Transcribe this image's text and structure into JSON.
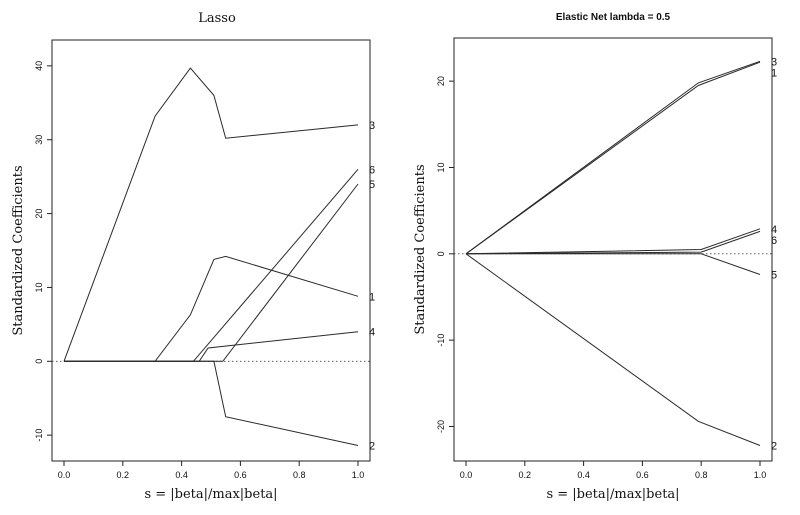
{
  "chart_data": [
    {
      "type": "line",
      "title": "Lasso",
      "xlabel": "s = |beta|/max|beta|",
      "ylabel": "Standardized Coefficients",
      "xlim": [
        0.0,
        1.0
      ],
      "ylim": [
        -13.5,
        43.5
      ],
      "xticks": [
        "0.0",
        "0.2",
        "0.4",
        "0.6",
        "0.8",
        "1.0"
      ],
      "yticks": [
        "-10",
        "0",
        "10",
        "20",
        "30",
        "40"
      ],
      "series": [
        {
          "name": "3",
          "x": [
            0.0,
            0.31,
            0.43,
            0.51,
            0.55,
            1.0
          ],
          "y": [
            0.0,
            33.2,
            39.7,
            36.0,
            30.2,
            32.0
          ]
        },
        {
          "name": "6",
          "x": [
            0.0,
            0.44,
            1.0
          ],
          "y": [
            0.0,
            0.0,
            26.0
          ]
        },
        {
          "name": "5",
          "x": [
            0.0,
            0.54,
            1.0
          ],
          "y": [
            0.0,
            0.0,
            24.0
          ]
        },
        {
          "name": "1",
          "x": [
            0.0,
            0.31,
            0.43,
            0.51,
            0.55,
            1.0
          ],
          "y": [
            0.0,
            0.0,
            6.3,
            13.8,
            14.2,
            8.8
          ]
        },
        {
          "name": "4",
          "x": [
            0.0,
            0.46,
            0.49,
            1.0
          ],
          "y": [
            0.0,
            0.0,
            1.8,
            4.0
          ]
        },
        {
          "name": "2",
          "x": [
            0.0,
            0.51,
            0.55,
            1.0
          ],
          "y": [
            0.0,
            0.0,
            -7.5,
            -11.4
          ]
        }
      ]
    },
    {
      "type": "line",
      "title": "Elastic Net lambda = 0.5",
      "xlabel": "s = |beta|/max|beta|",
      "ylabel": "Standardized Coefficients",
      "xlim": [
        0.0,
        1.0
      ],
      "ylim": [
        -24.0,
        25.0
      ],
      "xticks": [
        "0.0",
        "0.2",
        "0.4",
        "0.6",
        "0.8",
        "1.0"
      ],
      "yticks": [
        "-20",
        "-10",
        "0",
        "10",
        "20"
      ],
      "series": [
        {
          "name": "3",
          "x": [
            0.0,
            0.79,
            1.0
          ],
          "y": [
            0.0,
            19.8,
            22.3
          ]
        },
        {
          "name": "1",
          "x": [
            0.0,
            0.79,
            1.0
          ],
          "y": [
            0.0,
            19.5,
            22.2
          ]
        },
        {
          "name": "4",
          "x": [
            0.0,
            0.8,
            1.0
          ],
          "y": [
            0.0,
            0.5,
            2.9
          ]
        },
        {
          "name": "6",
          "x": [
            0.0,
            0.8,
            1.0
          ],
          "y": [
            0.0,
            0.2,
            2.6
          ]
        },
        {
          "name": "5",
          "x": [
            0.0,
            0.8,
            1.0
          ],
          "y": [
            0.0,
            0.0,
            -2.4
          ]
        },
        {
          "name": "2",
          "x": [
            0.0,
            0.79,
            1.0
          ],
          "y": [
            0.0,
            -19.4,
            -22.2
          ]
        }
      ]
    }
  ]
}
